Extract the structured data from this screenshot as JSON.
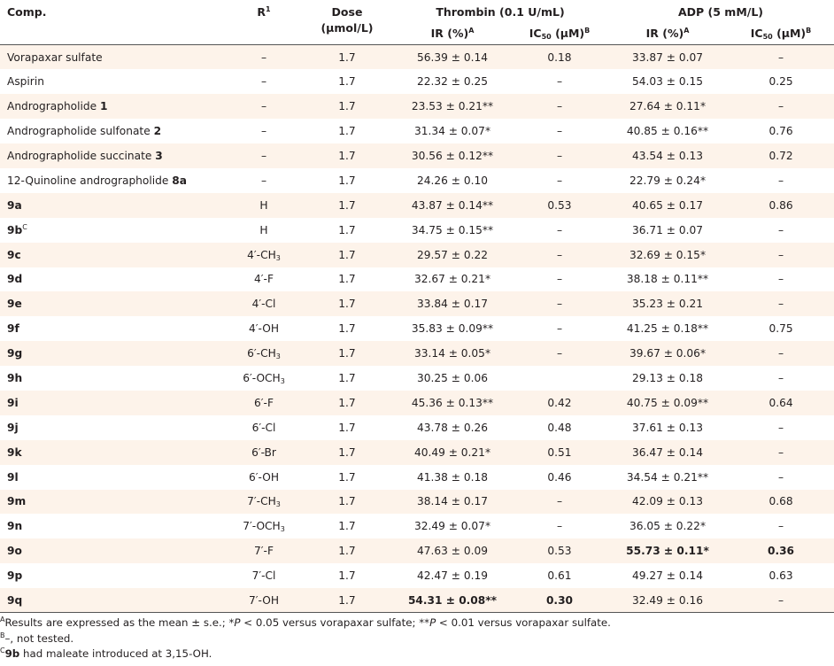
{
  "headers": {
    "comp": "Comp.",
    "r": "R",
    "r_sup": "1",
    "dose": "Dose",
    "dose_unit": "(μmol/L)",
    "thrombin": "Thrombin (0.1 U/mL)",
    "adp": "ADP (5 mM/L)",
    "ir": "IR (%)",
    "ir_sup": "A",
    "ic_prefix": "IC",
    "ic_sub": "50",
    "ic_unit": " (μM)",
    "ic_sup": "B"
  },
  "rows": [
    {
      "comp": "Vorapaxar sulfate",
      "comp_bold": "",
      "comp_sup": "",
      "r": "–",
      "r_sub": "",
      "dose": "1.7",
      "t_ir": "56.39 ± 0.14",
      "t_ir_bold": false,
      "t_ic": "0.18",
      "t_ic_bold": false,
      "a_ir": "33.87 ± 0.07",
      "a_ir_bold": false,
      "a_ic": "–",
      "a_ic_bold": false
    },
    {
      "comp": "Aspirin",
      "comp_bold": "",
      "comp_sup": "",
      "r": "–",
      "r_sub": "",
      "dose": "1.7",
      "t_ir": "22.32 ± 0.25",
      "t_ir_bold": false,
      "t_ic": "–",
      "t_ic_bold": false,
      "a_ir": "54.03 ± 0.15",
      "a_ir_bold": false,
      "a_ic": "0.25",
      "a_ic_bold": false
    },
    {
      "comp": "Andrographolide ",
      "comp_bold": "1",
      "comp_sup": "",
      "r": "–",
      "r_sub": "",
      "dose": "1.7",
      "t_ir": "23.53 ± 0.21**",
      "t_ir_bold": false,
      "t_ic": "–",
      "t_ic_bold": false,
      "a_ir": "27.64 ± 0.11*",
      "a_ir_bold": false,
      "a_ic": "–",
      "a_ic_bold": false
    },
    {
      "comp": "Andrographolide sulfonate ",
      "comp_bold": "2",
      "comp_sup": "",
      "r": "–",
      "r_sub": "",
      "dose": "1.7",
      "t_ir": "31.34 ± 0.07*",
      "t_ir_bold": false,
      "t_ic": "–",
      "t_ic_bold": false,
      "a_ir": "40.85 ± 0.16**",
      "a_ir_bold": false,
      "a_ic": "0.76",
      "a_ic_bold": false
    },
    {
      "comp": "Andrographolide succinate ",
      "comp_bold": "3",
      "comp_sup": "",
      "r": "–",
      "r_sub": "",
      "dose": "1.7",
      "t_ir": "30.56 ± 0.12**",
      "t_ir_bold": false,
      "t_ic": "–",
      "t_ic_bold": false,
      "a_ir": "43.54 ± 0.13",
      "a_ir_bold": false,
      "a_ic": "0.72",
      "a_ic_bold": false
    },
    {
      "comp": "12-Quinoline andrographolide ",
      "comp_bold": "8a",
      "comp_sup": "",
      "r": "–",
      "r_sub": "",
      "dose": "1.7",
      "t_ir": "24.26 ± 0.10",
      "t_ir_bold": false,
      "t_ic": "–",
      "t_ic_bold": false,
      "a_ir": "22.79 ± 0.24*",
      "a_ir_bold": false,
      "a_ic": "–",
      "a_ic_bold": false
    },
    {
      "comp": "",
      "comp_bold": "9a",
      "comp_sup": "",
      "r": "H",
      "r_sub": "",
      "dose": "1.7",
      "t_ir": "43.87 ± 0.14**",
      "t_ir_bold": false,
      "t_ic": "0.53",
      "t_ic_bold": false,
      "a_ir": "40.65 ± 0.17",
      "a_ir_bold": false,
      "a_ic": "0.86",
      "a_ic_bold": false
    },
    {
      "comp": "",
      "comp_bold": "9b",
      "comp_sup": "C",
      "r": "H",
      "r_sub": "",
      "dose": "1.7",
      "t_ir": "34.75 ± 0.15**",
      "t_ir_bold": false,
      "t_ic": "–",
      "t_ic_bold": false,
      "a_ir": "36.71 ± 0.07",
      "a_ir_bold": false,
      "a_ic": "–",
      "a_ic_bold": false
    },
    {
      "comp": "",
      "comp_bold": "9c",
      "comp_sup": "",
      "r": "4′-CH",
      "r_sub": "3",
      "dose": "1.7",
      "t_ir": "29.57 ± 0.22",
      "t_ir_bold": false,
      "t_ic": "–",
      "t_ic_bold": false,
      "a_ir": "32.69 ± 0.15*",
      "a_ir_bold": false,
      "a_ic": "–",
      "a_ic_bold": false
    },
    {
      "comp": "",
      "comp_bold": "9d",
      "comp_sup": "",
      "r": "4′-F",
      "r_sub": "",
      "dose": "1.7",
      "t_ir": "32.67 ± 0.21*",
      "t_ir_bold": false,
      "t_ic": "–",
      "t_ic_bold": false,
      "a_ir": "38.18 ± 0.11**",
      "a_ir_bold": false,
      "a_ic": "–",
      "a_ic_bold": false
    },
    {
      "comp": "",
      "comp_bold": "9e",
      "comp_sup": "",
      "r": "4′-Cl",
      "r_sub": "",
      "dose": "1.7",
      "t_ir": "33.84 ± 0.17",
      "t_ir_bold": false,
      "t_ic": "–",
      "t_ic_bold": false,
      "a_ir": "35.23 ± 0.21",
      "a_ir_bold": false,
      "a_ic": "–",
      "a_ic_bold": false
    },
    {
      "comp": "",
      "comp_bold": "9f",
      "comp_sup": "",
      "r": "4′-OH",
      "r_sub": "",
      "dose": "1.7",
      "t_ir": "35.83 ± 0.09**",
      "t_ir_bold": false,
      "t_ic": "–",
      "t_ic_bold": false,
      "a_ir": "41.25 ± 0.18**",
      "a_ir_bold": false,
      "a_ic": "0.75",
      "a_ic_bold": false
    },
    {
      "comp": "",
      "comp_bold": "9g",
      "comp_sup": "",
      "r": "6′-CH",
      "r_sub": "3",
      "dose": "1.7",
      "t_ir": "33.14 ± 0.05*",
      "t_ir_bold": false,
      "t_ic": "–",
      "t_ic_bold": false,
      "a_ir": "39.67 ± 0.06*",
      "a_ir_bold": false,
      "a_ic": "–",
      "a_ic_bold": false
    },
    {
      "comp": "",
      "comp_bold": "9h",
      "comp_sup": "",
      "r": "6′-OCH",
      "r_sub": "3",
      "dose": "1.7",
      "t_ir": "30.25 ± 0.06",
      "t_ir_bold": false,
      "t_ic": "",
      "t_ic_bold": false,
      "a_ir": "29.13 ± 0.18",
      "a_ir_bold": false,
      "a_ic": "–",
      "a_ic_bold": false
    },
    {
      "comp": "",
      "comp_bold": "9i",
      "comp_sup": "",
      "r": "6′-F",
      "r_sub": "",
      "dose": "1.7",
      "t_ir": "45.36 ± 0.13**",
      "t_ir_bold": false,
      "t_ic": "0.42",
      "t_ic_bold": false,
      "a_ir": "40.75 ± 0.09**",
      "a_ir_bold": false,
      "a_ic": "0.64",
      "a_ic_bold": false
    },
    {
      "comp": "",
      "comp_bold": "9j",
      "comp_sup": "",
      "r": "6′-Cl",
      "r_sub": "",
      "dose": "1.7",
      "t_ir": "43.78 ± 0.26",
      "t_ir_bold": false,
      "t_ic": "0.48",
      "t_ic_bold": false,
      "a_ir": "37.61 ± 0.13",
      "a_ir_bold": false,
      "a_ic": "–",
      "a_ic_bold": false
    },
    {
      "comp": "",
      "comp_bold": "9k",
      "comp_sup": "",
      "r": "6′-Br",
      "r_sub": "",
      "dose": "1.7",
      "t_ir": "40.49 ± 0.21*",
      "t_ir_bold": false,
      "t_ic": "0.51",
      "t_ic_bold": false,
      "a_ir": "36.47 ± 0.14",
      "a_ir_bold": false,
      "a_ic": "–",
      "a_ic_bold": false
    },
    {
      "comp": "",
      "comp_bold": "9l",
      "comp_sup": "",
      "r": "6′-OH",
      "r_sub": "",
      "dose": "1.7",
      "t_ir": "41.38 ± 0.18",
      "t_ir_bold": false,
      "t_ic": "0.46",
      "t_ic_bold": false,
      "a_ir": "34.54 ± 0.21**",
      "a_ir_bold": false,
      "a_ic": "–",
      "a_ic_bold": false
    },
    {
      "comp": "",
      "comp_bold": "9m",
      "comp_sup": "",
      "r": "7′-CH",
      "r_sub": "3",
      "dose": "1.7",
      "t_ir": "38.14 ± 0.17",
      "t_ir_bold": false,
      "t_ic": "–",
      "t_ic_bold": false,
      "a_ir": "42.09 ± 0.13",
      "a_ir_bold": false,
      "a_ic": "0.68",
      "a_ic_bold": false
    },
    {
      "comp": "",
      "comp_bold": "9n",
      "comp_sup": "",
      "r": "7′-OCH",
      "r_sub": "3",
      "dose": "1.7",
      "t_ir": "32.49 ± 0.07*",
      "t_ir_bold": false,
      "t_ic": "–",
      "t_ic_bold": false,
      "a_ir": "36.05 ± 0.22*",
      "a_ir_bold": false,
      "a_ic": "–",
      "a_ic_bold": false
    },
    {
      "comp": "",
      "comp_bold": "9o",
      "comp_sup": "",
      "r": "7′-F",
      "r_sub": "",
      "dose": "1.7",
      "t_ir": "47.63 ± 0.09",
      "t_ir_bold": false,
      "t_ic": "0.53",
      "t_ic_bold": false,
      "a_ir": "55.73 ± 0.11*",
      "a_ir_bold": true,
      "a_ic": "0.36",
      "a_ic_bold": true
    },
    {
      "comp": "",
      "comp_bold": "9p",
      "comp_sup": "",
      "r": "7′-Cl",
      "r_sub": "",
      "dose": "1.7",
      "t_ir": "42.47 ± 0.19",
      "t_ir_bold": false,
      "t_ic": "0.61",
      "t_ic_bold": false,
      "a_ir": "49.27 ± 0.14",
      "a_ir_bold": false,
      "a_ic": "0.63",
      "a_ic_bold": false
    },
    {
      "comp": "",
      "comp_bold": "9q",
      "comp_sup": "",
      "r": "7′-OH",
      "r_sub": "",
      "dose": "1.7",
      "t_ir": "54.31 ± 0.08**",
      "t_ir_bold": true,
      "t_ic": "0.30",
      "t_ic_bold": true,
      "a_ir": "32.49 ± 0.16",
      "a_ir_bold": false,
      "a_ic": "–",
      "a_ic_bold": false
    }
  ],
  "notes": {
    "a_sup": "A",
    "a_text1": "Results are expressed as the mean ± s.e.; *",
    "a_p1": "P",
    "a_text2": " < 0.05 versus vorapaxar sulfate; **",
    "a_p2": "P",
    "a_text3": " < 0.01 versus vorapaxar sulfate.",
    "b_sup": "B",
    "b_text": "–, not tested.",
    "c_sup": "C",
    "c_bold": "9b",
    "c_text": " had maleate introduced at 3,15-OH."
  }
}
